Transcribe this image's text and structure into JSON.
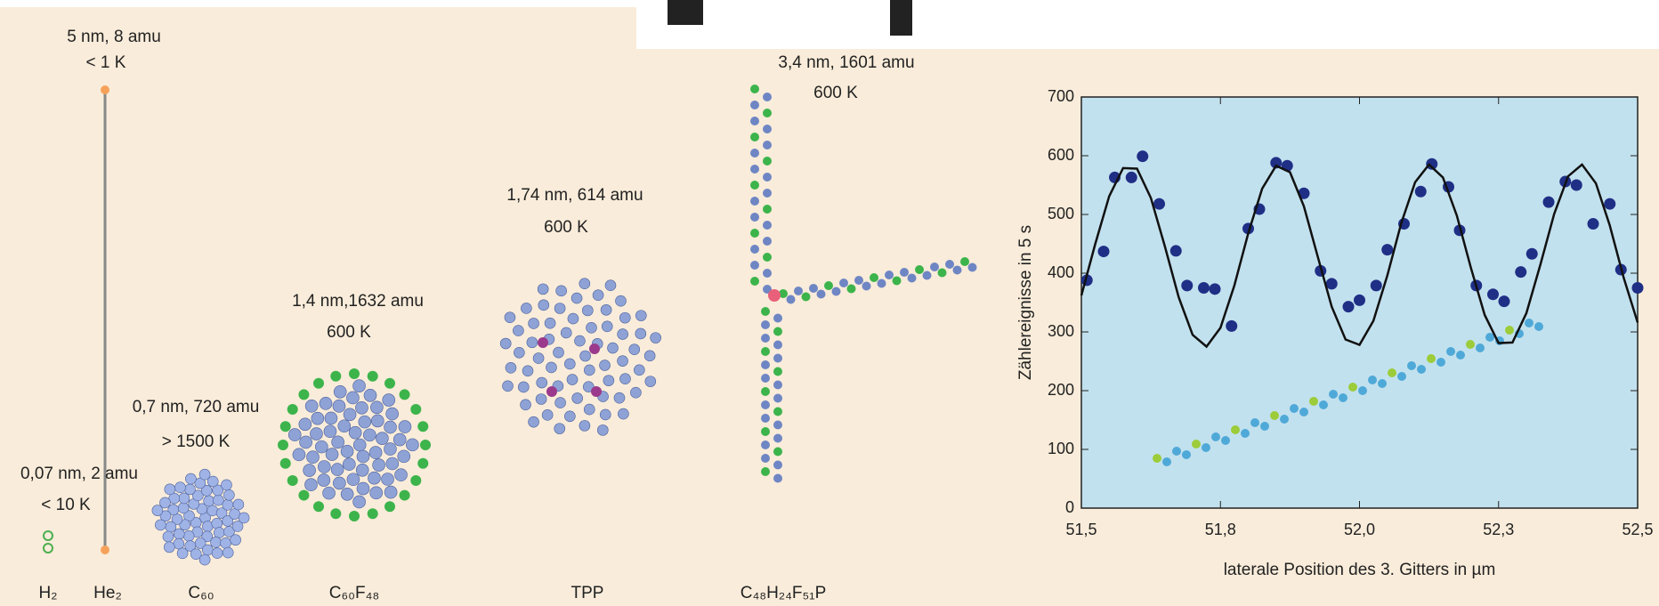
{
  "molecules": [
    {
      "formula": "H₂",
      "lines": [
        "0,07 nm, 2 amu",
        "< 10 K"
      ]
    },
    {
      "formula": "He₂",
      "lines": [
        "5 nm, 8 amu",
        "< 1 K"
      ]
    },
    {
      "formula": "C₆₀",
      "lines": [
        "0,7 nm, 720 amu",
        "> 1500 K"
      ]
    },
    {
      "formula": "C₆₀F₄₈",
      "lines": [
        "1,4 nm,1632 amu",
        "600 K"
      ]
    },
    {
      "formula": "TPP",
      "lines": [
        "1,74 nm, 614 amu",
        "600 K"
      ]
    },
    {
      "formula": "C₄₈H₂₄F₅₁P",
      "lines": [
        "3,4 nm, 1601 amu",
        "600 K"
      ]
    }
  ],
  "chart_data": {
    "type": "scatter",
    "xlabel": "laterale Position des 3. Gitters in µm",
    "ylabel": "Zählereignisse in 5 s",
    "xlim": [
      51.5,
      52.5
    ],
    "xticks": [
      {
        "value": 51.5,
        "label": "51,5"
      },
      {
        "value": 51.75,
        "label": "51,8"
      },
      {
        "value": 52.0,
        "label": "52,0"
      },
      {
        "value": 52.25,
        "label": "52,3"
      },
      {
        "value": 52.5,
        "label": "52,5"
      }
    ],
    "ylim": [
      0,
      700
    ],
    "yticks": [
      0,
      100,
      200,
      300,
      400,
      500,
      600,
      700
    ],
    "series": [
      {
        "mode": "markers",
        "color": "#1f2f86",
        "x": [
          51.51,
          51.54,
          51.56,
          51.59,
          51.61,
          51.64,
          51.67,
          51.69,
          51.72,
          51.74,
          51.77,
          51.8,
          51.82,
          51.85,
          51.87,
          51.9,
          51.93,
          51.95,
          51.98,
          52.0,
          52.03,
          52.05,
          52.08,
          52.11,
          52.13,
          52.16,
          52.18,
          52.21,
          52.24,
          52.26,
          52.29,
          52.31,
          52.34,
          52.37,
          52.39,
          52.42,
          52.45,
          52.47,
          52.5
        ],
        "values": [
          388,
          437,
          563,
          563,
          599,
          518,
          438,
          379,
          375,
          373,
          310,
          476,
          509,
          588,
          583,
          536,
          404,
          382,
          343,
          354,
          379,
          440,
          484,
          539,
          586,
          547,
          473,
          379,
          364,
          352,
          402,
          433,
          521,
          556,
          550,
          484,
          518,
          406,
          375
        ]
      },
      {
        "mode": "line",
        "color": "#111111",
        "x": [
          51.5,
          51.525,
          51.55,
          51.575,
          51.6,
          51.625,
          51.65,
          51.675,
          51.7,
          51.725,
          51.75,
          51.775,
          51.8,
          51.825,
          51.85,
          51.875,
          51.9,
          51.925,
          51.95,
          51.975,
          52.0,
          52.025,
          52.05,
          52.075,
          52.1,
          52.125,
          52.15,
          52.175,
          52.2,
          52.225,
          52.25,
          52.275,
          52.3,
          52.325,
          52.35,
          52.375,
          52.4,
          52.425,
          52.45,
          52.475,
          52.5
        ],
        "values": [
          362,
          450,
          531,
          579,
          578,
          528,
          446,
          359,
          295,
          275,
          307,
          379,
          468,
          544,
          583,
          572,
          514,
          428,
          343,
          287,
          278,
          319,
          396,
          485,
          555,
          585,
          563,
          498,
          410,
          329,
          281,
          282,
          332,
          414,
          501,
          565,
          585,
          553,
          481,
          392,
          316
        ]
      }
    ]
  }
}
